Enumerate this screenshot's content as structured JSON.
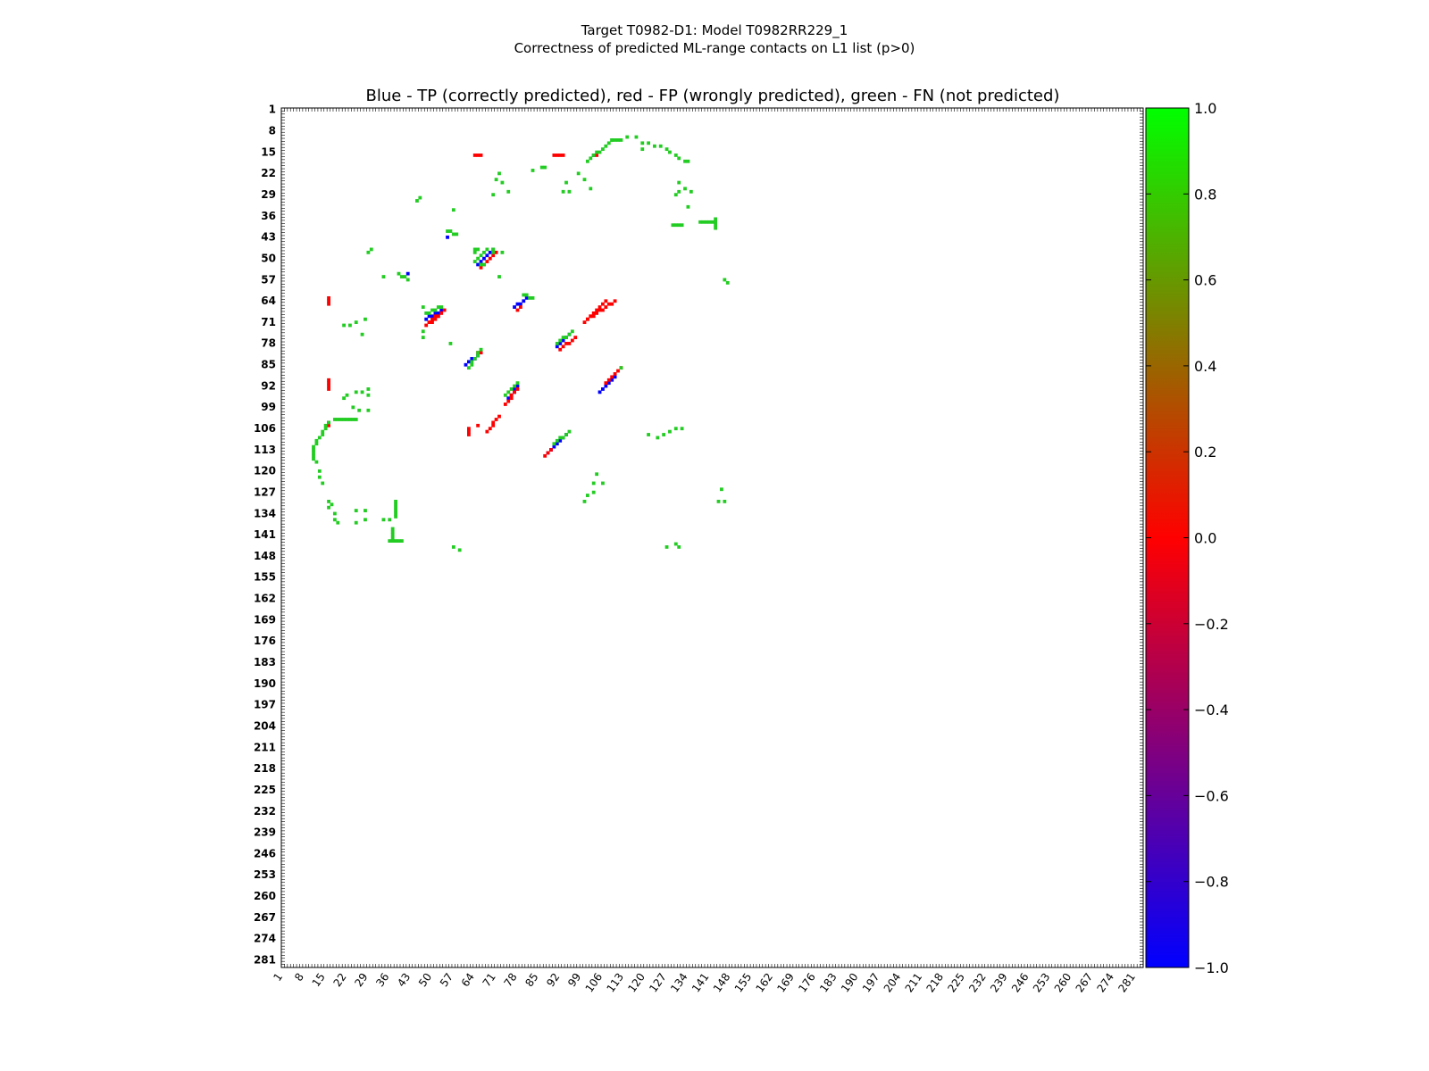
{
  "figure": {
    "title_line1": "Target T0982-D1: Model T0982RR229_1",
    "title_line2": "Correctness of predicted ML-range contacts on L1 list (p>0)"
  },
  "chart_data": {
    "type": "heatmap",
    "title": "Blue - TP (correctly predicted), red - FP (wrongly predicted), green - FN (not predicted)",
    "xlabel": "",
    "ylabel": "",
    "xlim": [
      1,
      283
    ],
    "ylim": [
      1,
      283
    ],
    "tick_labels": [
      "1",
      "8",
      "15",
      "22",
      "29",
      "36",
      "43",
      "50",
      "57",
      "64",
      "71",
      "78",
      "85",
      "92",
      "99",
      "106",
      "113",
      "120",
      "127",
      "134",
      "141",
      "148",
      "155",
      "162",
      "169",
      "176",
      "183",
      "190",
      "197",
      "204",
      "211",
      "218",
      "225",
      "232",
      "239",
      "246",
      "253",
      "260",
      "267",
      "274",
      "281"
    ],
    "colorbar": {
      "min": -1.0,
      "max": 1.0,
      "ticks": [
        "1.0",
        "0.8",
        "0.6",
        "0.4",
        "0.2",
        "0.0",
        "−0.2",
        "−0.4",
        "−0.6",
        "−0.8",
        "−1.0"
      ],
      "colors": [
        "#0000ff",
        "#ff0000",
        "#00ff00"
      ]
    },
    "legend": {
      "TP": "#0000ff",
      "FP": "#ff0000",
      "FN": "#22cc22"
    },
    "segments": [
      {
        "c": "TP",
        "x1": 65,
        "y1": 52,
        "x2": 70,
        "y2": 47
      },
      {
        "c": "FP",
        "x1": 66,
        "y1": 53,
        "x2": 71,
        "y2": 48
      },
      {
        "c": "FN",
        "x1": 64,
        "y1": 51,
        "x2": 68,
        "y2": 47
      },
      {
        "c": "FN",
        "x1": 64,
        "y1": 47,
        "x2": 65,
        "y2": 47
      },
      {
        "c": "FN",
        "x1": 66,
        "y1": 52,
        "x2": 67,
        "y2": 52
      },
      {
        "c": "FN",
        "x1": 70,
        "y1": 47,
        "x2": 70,
        "y2": 47
      },
      {
        "c": "TP",
        "x1": 48,
        "y1": 70,
        "x2": 53,
        "y2": 67
      },
      {
        "c": "FP",
        "x1": 49,
        "y1": 71,
        "x2": 54,
        "y2": 67
      },
      {
        "c": "FP",
        "x1": 48,
        "y1": 72,
        "x2": 52,
        "y2": 69
      },
      {
        "c": "FN",
        "x1": 48,
        "y1": 68,
        "x2": 53,
        "y2": 66
      },
      {
        "c": "FN",
        "x1": 47,
        "y1": 66,
        "x2": 47,
        "y2": 66
      },
      {
        "c": "TP",
        "x1": 77,
        "y1": 66,
        "x2": 81,
        "y2": 63
      },
      {
        "c": "FP",
        "x1": 78,
        "y1": 67,
        "x2": 79,
        "y2": 66
      },
      {
        "c": "FN",
        "x1": 80,
        "y1": 62,
        "x2": 83,
        "y2": 63
      },
      {
        "c": "FP",
        "x1": 100,
        "y1": 71,
        "x2": 107,
        "y2": 64
      },
      {
        "c": "FP",
        "x1": 101,
        "y1": 70,
        "x2": 110,
        "y2": 64
      },
      {
        "c": "TP",
        "x1": 91,
        "y1": 79,
        "x2": 95,
        "y2": 75
      },
      {
        "c": "FP",
        "x1": 92,
        "y1": 80,
        "x2": 97,
        "y2": 76
      },
      {
        "c": "FN",
        "x1": 91,
        "y1": 78,
        "x2": 96,
        "y2": 74
      },
      {
        "c": "TP",
        "x1": 61,
        "y1": 85,
        "x2": 66,
        "y2": 81
      },
      {
        "c": "FP",
        "x1": 65,
        "y1": 81,
        "x2": 66,
        "y2": 81
      },
      {
        "c": "FN",
        "x1": 62,
        "y1": 86,
        "x2": 66,
        "y2": 80
      },
      {
        "c": "TP",
        "x1": 105,
        "y1": 94,
        "x2": 110,
        "y2": 89
      },
      {
        "c": "FP",
        "x1": 107,
        "y1": 91,
        "x2": 112,
        "y2": 86
      },
      {
        "c": "FN",
        "x1": 112,
        "y1": 86,
        "x2": 112,
        "y2": 86
      },
      {
        "c": "TP",
        "x1": 75,
        "y1": 96,
        "x2": 78,
        "y2": 92
      },
      {
        "c": "FP",
        "x1": 74,
        "y1": 98,
        "x2": 78,
        "y2": 93
      },
      {
        "c": "FN",
        "x1": 74,
        "y1": 95,
        "x2": 78,
        "y2": 91
      },
      {
        "c": "FP",
        "x1": 68,
        "y1": 107,
        "x2": 72,
        "y2": 102
      },
      {
        "c": "FP",
        "x1": 65,
        "y1": 105,
        "x2": 65,
        "y2": 105
      },
      {
        "c": "FP",
        "x1": 62,
        "y1": 108,
        "x2": 62,
        "y2": 106
      },
      {
        "c": "TP",
        "x1": 88,
        "y1": 114,
        "x2": 94,
        "y2": 108
      },
      {
        "c": "FP",
        "x1": 87,
        "y1": 115,
        "x2": 89,
        "y2": 113
      },
      {
        "c": "FN",
        "x1": 90,
        "y1": 111,
        "x2": 95,
        "y2": 107
      },
      {
        "c": "TP",
        "x1": 16,
        "y1": 104,
        "x2": 16,
        "y2": 104
      },
      {
        "c": "FP",
        "x1": 16,
        "y1": 105,
        "x2": 16,
        "y2": 105
      },
      {
        "c": "FN",
        "x1": 11,
        "y1": 112,
        "x2": 16,
        "y2": 104
      },
      {
        "c": "FN",
        "x1": 18,
        "y1": 103,
        "x2": 25,
        "y2": 103
      },
      {
        "c": "FN",
        "x1": 11,
        "y1": 113,
        "x2": 11,
        "y2": 116
      },
      {
        "c": "TP",
        "x1": 103,
        "y1": 16,
        "x2": 103,
        "y2": 16
      },
      {
        "c": "FP",
        "x1": 104,
        "y1": 16,
        "x2": 104,
        "y2": 16
      },
      {
        "c": "FN",
        "x1": 101,
        "y1": 18,
        "x2": 109,
        "y2": 11
      },
      {
        "c": "FN",
        "x1": 109,
        "y1": 11,
        "x2": 112,
        "y2": 11
      },
      {
        "c": "FP",
        "x1": 64,
        "y1": 16,
        "x2": 66,
        "y2": 16
      },
      {
        "c": "FP",
        "x1": 90,
        "y1": 16,
        "x2": 93,
        "y2": 16
      },
      {
        "c": "FP",
        "x1": 16,
        "y1": 63,
        "x2": 16,
        "y2": 65
      },
      {
        "c": "FP",
        "x1": 16,
        "y1": 90,
        "x2": 16,
        "y2": 93
      },
      {
        "c": "TP",
        "x1": 55,
        "y1": 43,
        "x2": 55,
        "y2": 43
      },
      {
        "c": "FN",
        "x1": 55,
        "y1": 41,
        "x2": 58,
        "y2": 42
      },
      {
        "c": "TP",
        "x1": 42,
        "y1": 55,
        "x2": 42,
        "y2": 55
      },
      {
        "c": "FN",
        "x1": 39,
        "y1": 55,
        "x2": 42,
        "y2": 57
      },
      {
        "c": "FN",
        "x1": 138,
        "y1": 38,
        "x2": 143,
        "y2": 38
      },
      {
        "c": "FN",
        "x1": 143,
        "y1": 37,
        "x2": 143,
        "y2": 40
      },
      {
        "c": "FN",
        "x1": 129,
        "y1": 39,
        "x2": 132,
        "y2": 39
      },
      {
        "c": "FN",
        "x1": 38,
        "y1": 130,
        "x2": 38,
        "y2": 135
      },
      {
        "c": "FN",
        "x1": 36,
        "y1": 143,
        "x2": 40,
        "y2": 143
      },
      {
        "c": "FN",
        "x1": 37,
        "y1": 139,
        "x2": 37,
        "y2": 142
      }
    ],
    "dots": [
      [
        114,
        10
      ],
      [
        117,
        10
      ],
      [
        119,
        12
      ],
      [
        121,
        12
      ],
      [
        123,
        13
      ],
      [
        125,
        13
      ],
      [
        119,
        14
      ],
      [
        127,
        14
      ],
      [
        128,
        15
      ],
      [
        130,
        16
      ],
      [
        131,
        17
      ],
      [
        133,
        18
      ],
      [
        134,
        18
      ],
      [
        131,
        28
      ],
      [
        133,
        27
      ],
      [
        135,
        28
      ],
      [
        131,
        25
      ],
      [
        130,
        29
      ],
      [
        134,
        33
      ],
      [
        83,
        21
      ],
      [
        86,
        20
      ],
      [
        87,
        20
      ],
      [
        93,
        28
      ],
      [
        95,
        28
      ],
      [
        94,
        25
      ],
      [
        100,
        24
      ],
      [
        102,
        27
      ],
      [
        98,
        22
      ],
      [
        72,
        22
      ],
      [
        71,
        24
      ],
      [
        73,
        25
      ],
      [
        70,
        29
      ],
      [
        75,
        28
      ],
      [
        45,
        31
      ],
      [
        46,
        30
      ],
      [
        57,
        34
      ],
      [
        29,
        48
      ],
      [
        30,
        47
      ],
      [
        64,
        48
      ],
      [
        70,
        48
      ],
      [
        73,
        48
      ],
      [
        72,
        56
      ],
      [
        34,
        56
      ],
      [
        146,
        57
      ],
      [
        147,
        58
      ],
      [
        21,
        72
      ],
      [
        23,
        72
      ],
      [
        25,
        71
      ],
      [
        28,
        70
      ],
      [
        27,
        75
      ],
      [
        47,
        74
      ],
      [
        47,
        76
      ],
      [
        56,
        78
      ],
      [
        21,
        96
      ],
      [
        22,
        95
      ],
      [
        25,
        94
      ],
      [
        27,
        94
      ],
      [
        29,
        93
      ],
      [
        29,
        95
      ],
      [
        24,
        99
      ],
      [
        26,
        100
      ],
      [
        29,
        100
      ],
      [
        121,
        108
      ],
      [
        124,
        109
      ],
      [
        126,
        108
      ],
      [
        128,
        107
      ],
      [
        130,
        106
      ],
      [
        132,
        106
      ],
      [
        104,
        121
      ],
      [
        103,
        124
      ],
      [
        106,
        124
      ],
      [
        101,
        128
      ],
      [
        103,
        127
      ],
      [
        100,
        130
      ],
      [
        145,
        126
      ],
      [
        144,
        130
      ],
      [
        146,
        130
      ],
      [
        12,
        117
      ],
      [
        13,
        120
      ],
      [
        13,
        122
      ],
      [
        14,
        124
      ],
      [
        16,
        130
      ],
      [
        17,
        131
      ],
      [
        16,
        132
      ],
      [
        18,
        134
      ],
      [
        18,
        136
      ],
      [
        19,
        137
      ],
      [
        25,
        133
      ],
      [
        28,
        133
      ],
      [
        28,
        136
      ],
      [
        25,
        137
      ],
      [
        34,
        136
      ],
      [
        36,
        136
      ],
      [
        57,
        145
      ],
      [
        59,
        146
      ],
      [
        127,
        145
      ],
      [
        130,
        144
      ],
      [
        131,
        145
      ]
    ]
  }
}
